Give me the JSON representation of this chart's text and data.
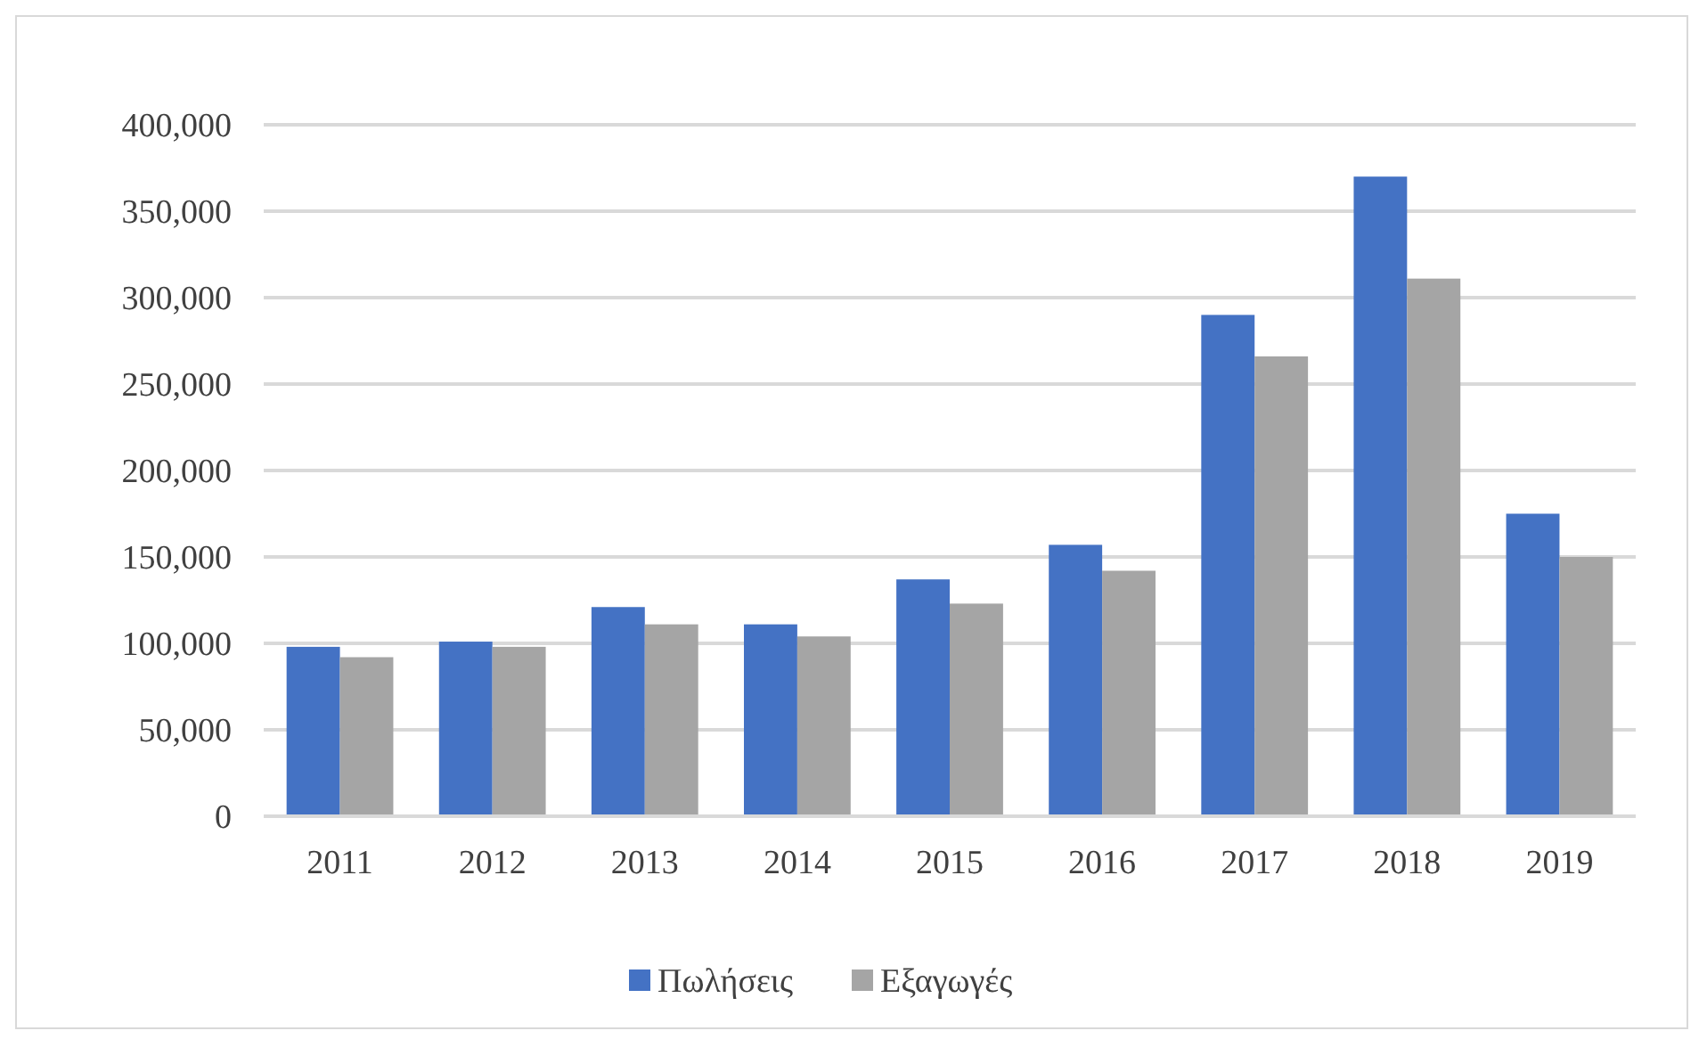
{
  "chart_data": {
    "type": "bar",
    "categories": [
      "2011",
      "2012",
      "2013",
      "2014",
      "2015",
      "2016",
      "2017",
      "2018",
      "2019"
    ],
    "series": [
      {
        "name": "Πωλήσεις",
        "color": "#4472c4",
        "values": [
          98000,
          101000,
          121000,
          111000,
          137000,
          157000,
          290000,
          370000,
          175000
        ]
      },
      {
        "name": "Εξαγωγές",
        "color": "#a5a5a5",
        "values": [
          92000,
          98000,
          111000,
          104000,
          123000,
          142000,
          266000,
          311000,
          150000
        ]
      }
    ],
    "ylim": [
      0,
      400000
    ],
    "yticks": [
      {
        "value": 0,
        "label": "0"
      },
      {
        "value": 50000,
        "label": "50,000"
      },
      {
        "value": 100000,
        "label": "100,000"
      },
      {
        "value": 150000,
        "label": "150,000"
      },
      {
        "value": 200000,
        "label": "200,000"
      },
      {
        "value": 250000,
        "label": "250,000"
      },
      {
        "value": 300000,
        "label": "300,000"
      },
      {
        "value": 350000,
        "label": "350,000"
      },
      {
        "value": 400000,
        "label": "400,000"
      }
    ],
    "grid": "y",
    "legend": "bottom"
  }
}
